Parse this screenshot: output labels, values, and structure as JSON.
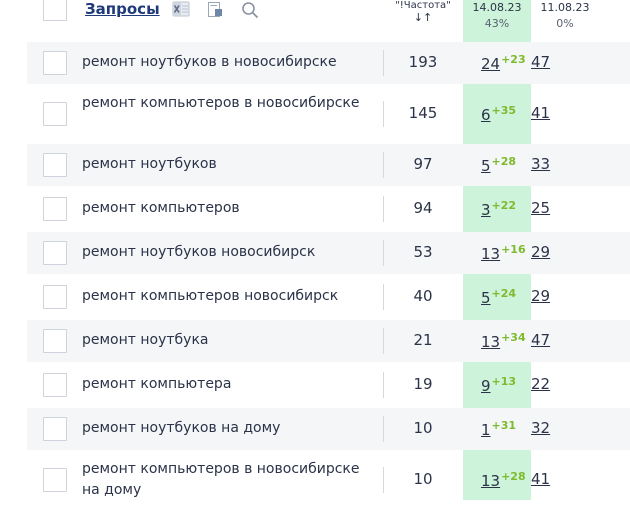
{
  "header": {
    "title": "Запросы",
    "freq_label": "\"!Частота\"",
    "sort_glyph": "↓↑",
    "date1": "14.08.23",
    "date1_pct": "43%",
    "date2": "11.08.23",
    "date2_pct": "0%"
  },
  "colors": {
    "highlight_column": "#cdf3da",
    "delta_green": "#7dbb2e",
    "title_blue": "#1f3a7a"
  },
  "rows": [
    {
      "query": "ремонт ноутбуков в новосибирске",
      "freq": "193",
      "pos1": "24",
      "delta": "+23",
      "pos2": "47"
    },
    {
      "query": "ремонт компьютеров в новосибирске",
      "freq": "145",
      "pos1": "6",
      "delta": "+35",
      "pos2": "41"
    },
    {
      "query": "ремонт ноутбуков",
      "freq": "97",
      "pos1": "5",
      "delta": "+28",
      "pos2": "33"
    },
    {
      "query": "ремонт компьютеров",
      "freq": "94",
      "pos1": "3",
      "delta": "+22",
      "pos2": "25"
    },
    {
      "query": "ремонт ноутбуков новосибирск",
      "freq": "53",
      "pos1": "13",
      "delta": "+16",
      "pos2": "29"
    },
    {
      "query": "ремонт компьютеров новосибирск",
      "freq": "40",
      "pos1": "5",
      "delta": "+24",
      "pos2": "29"
    },
    {
      "query": "ремонт ноутбука",
      "freq": "21",
      "pos1": "13",
      "delta": "+34",
      "pos2": "47"
    },
    {
      "query": "ремонт компьютера",
      "freq": "19",
      "pos1": "9",
      "delta": "+13",
      "pos2": "22"
    },
    {
      "query": "ремонт ноутбуков на дому",
      "freq": "10",
      "pos1": "1",
      "delta": "+31",
      "pos2": "32"
    },
    {
      "query": "ремонт компьютеров в новосибирске на дому",
      "freq": "10",
      "pos1": "13",
      "delta": "+28",
      "pos2": "41"
    }
  ]
}
